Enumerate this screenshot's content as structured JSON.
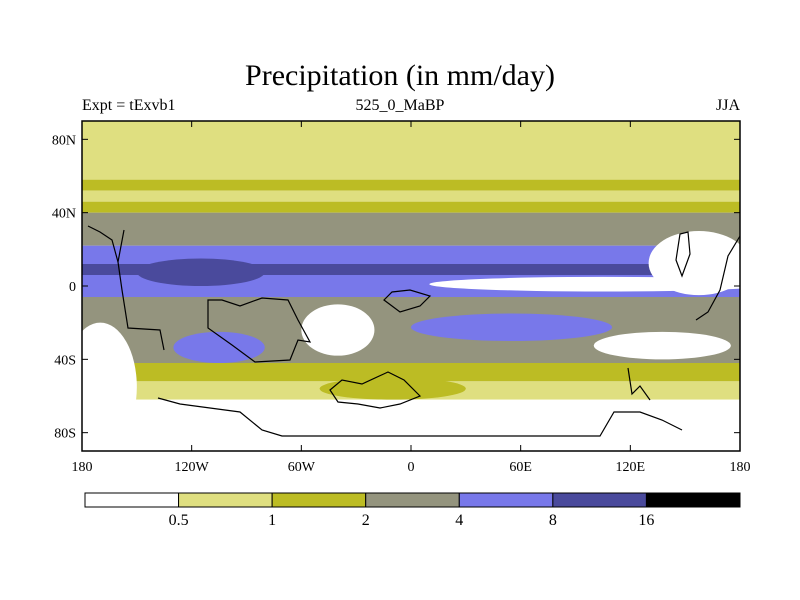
{
  "chart_data": {
    "type": "heatmap",
    "title": "Precipitation (in mm/day)",
    "subtitle_left": "Expt = tExvb1",
    "subtitle_center": "525_0_MaBP",
    "subtitle_right": "JJA",
    "variable": "precipitation",
    "units": "mm/day",
    "x_range": [
      -180,
      180
    ],
    "y_range": [
      -90,
      90
    ],
    "x_ticks": [
      {
        "value": -180,
        "label": "180"
      },
      {
        "value": -120,
        "label": "120W"
      },
      {
        "value": -60,
        "label": "60W"
      },
      {
        "value": 0,
        "label": "0"
      },
      {
        "value": 60,
        "label": "60E"
      },
      {
        "value": 120,
        "label": "120E"
      },
      {
        "value": 180,
        "label": "180"
      }
    ],
    "y_ticks": [
      {
        "value": 80,
        "label": "80N"
      },
      {
        "value": 40,
        "label": "40N"
      },
      {
        "value": 0,
        "label": "0"
      },
      {
        "value": -40,
        "label": "40S"
      },
      {
        "value": -80,
        "label": "80S"
      }
    ],
    "levels": [
      0.5,
      1,
      2,
      4,
      8,
      16
    ],
    "level_labels": [
      "0.5",
      "1",
      "2",
      "4",
      "8",
      "16"
    ],
    "colors": [
      "#ffffff",
      "#dfdf80",
      "#bcbc24",
      "#94947e",
      "#7878ea",
      "#4a4a9c",
      "#000000"
    ],
    "zonal_bands": [
      {
        "lat_from": 90,
        "lat_to": 58,
        "category": 1
      },
      {
        "lat_from": 58,
        "lat_to": 52,
        "category": 2
      },
      {
        "lat_from": 52,
        "lat_to": 46,
        "category": 1
      },
      {
        "lat_from": 46,
        "lat_to": 40,
        "category": 2
      },
      {
        "lat_from": 40,
        "lat_to": 22,
        "category": 3
      },
      {
        "lat_from": 22,
        "lat_to": 12,
        "category": 4
      },
      {
        "lat_from": 12,
        "lat_to": 6,
        "category": 5
      },
      {
        "lat_from": 6,
        "lat_to": -6,
        "category": 4
      },
      {
        "lat_from": -6,
        "lat_to": -42,
        "category": 3
      },
      {
        "lat_from": -42,
        "lat_to": -52,
        "category": 2
      },
      {
        "lat_from": -52,
        "lat_to": -62,
        "category": 1
      },
      {
        "lat_from": -62,
        "lat_to": -90,
        "category": 0
      }
    ],
    "patches": [
      {
        "lon_from": 10,
        "lon_to": 200,
        "lat_from": 5,
        "lat_to": -3,
        "category": 0
      },
      {
        "lon_from": -150,
        "lon_to": -80,
        "lat_from": 15,
        "lat_to": 0,
        "category": 5
      },
      {
        "lon_from": 130,
        "lon_to": 185,
        "lat_from": 30,
        "lat_to": -5,
        "category": 0
      },
      {
        "lon_from": -190,
        "lon_to": -150,
        "lat_from": -20,
        "lat_to": -90,
        "category": 0
      },
      {
        "lon_from": -60,
        "lon_to": -20,
        "lat_from": -10,
        "lat_to": -38,
        "category": 0
      },
      {
        "lon_from": -130,
        "lon_to": -80,
        "lat_from": -25,
        "lat_to": -42,
        "category": 4
      },
      {
        "lon_from": 0,
        "lon_to": 110,
        "lat_from": -15,
        "lat_to": -30,
        "category": 4
      },
      {
        "lon_from": 100,
        "lon_to": 175,
        "lat_from": -25,
        "lat_to": -40,
        "category": 0
      },
      {
        "lon_from": -50,
        "lon_to": 30,
        "lat_from": -50,
        "lat_to": -62,
        "category": 2
      }
    ]
  }
}
